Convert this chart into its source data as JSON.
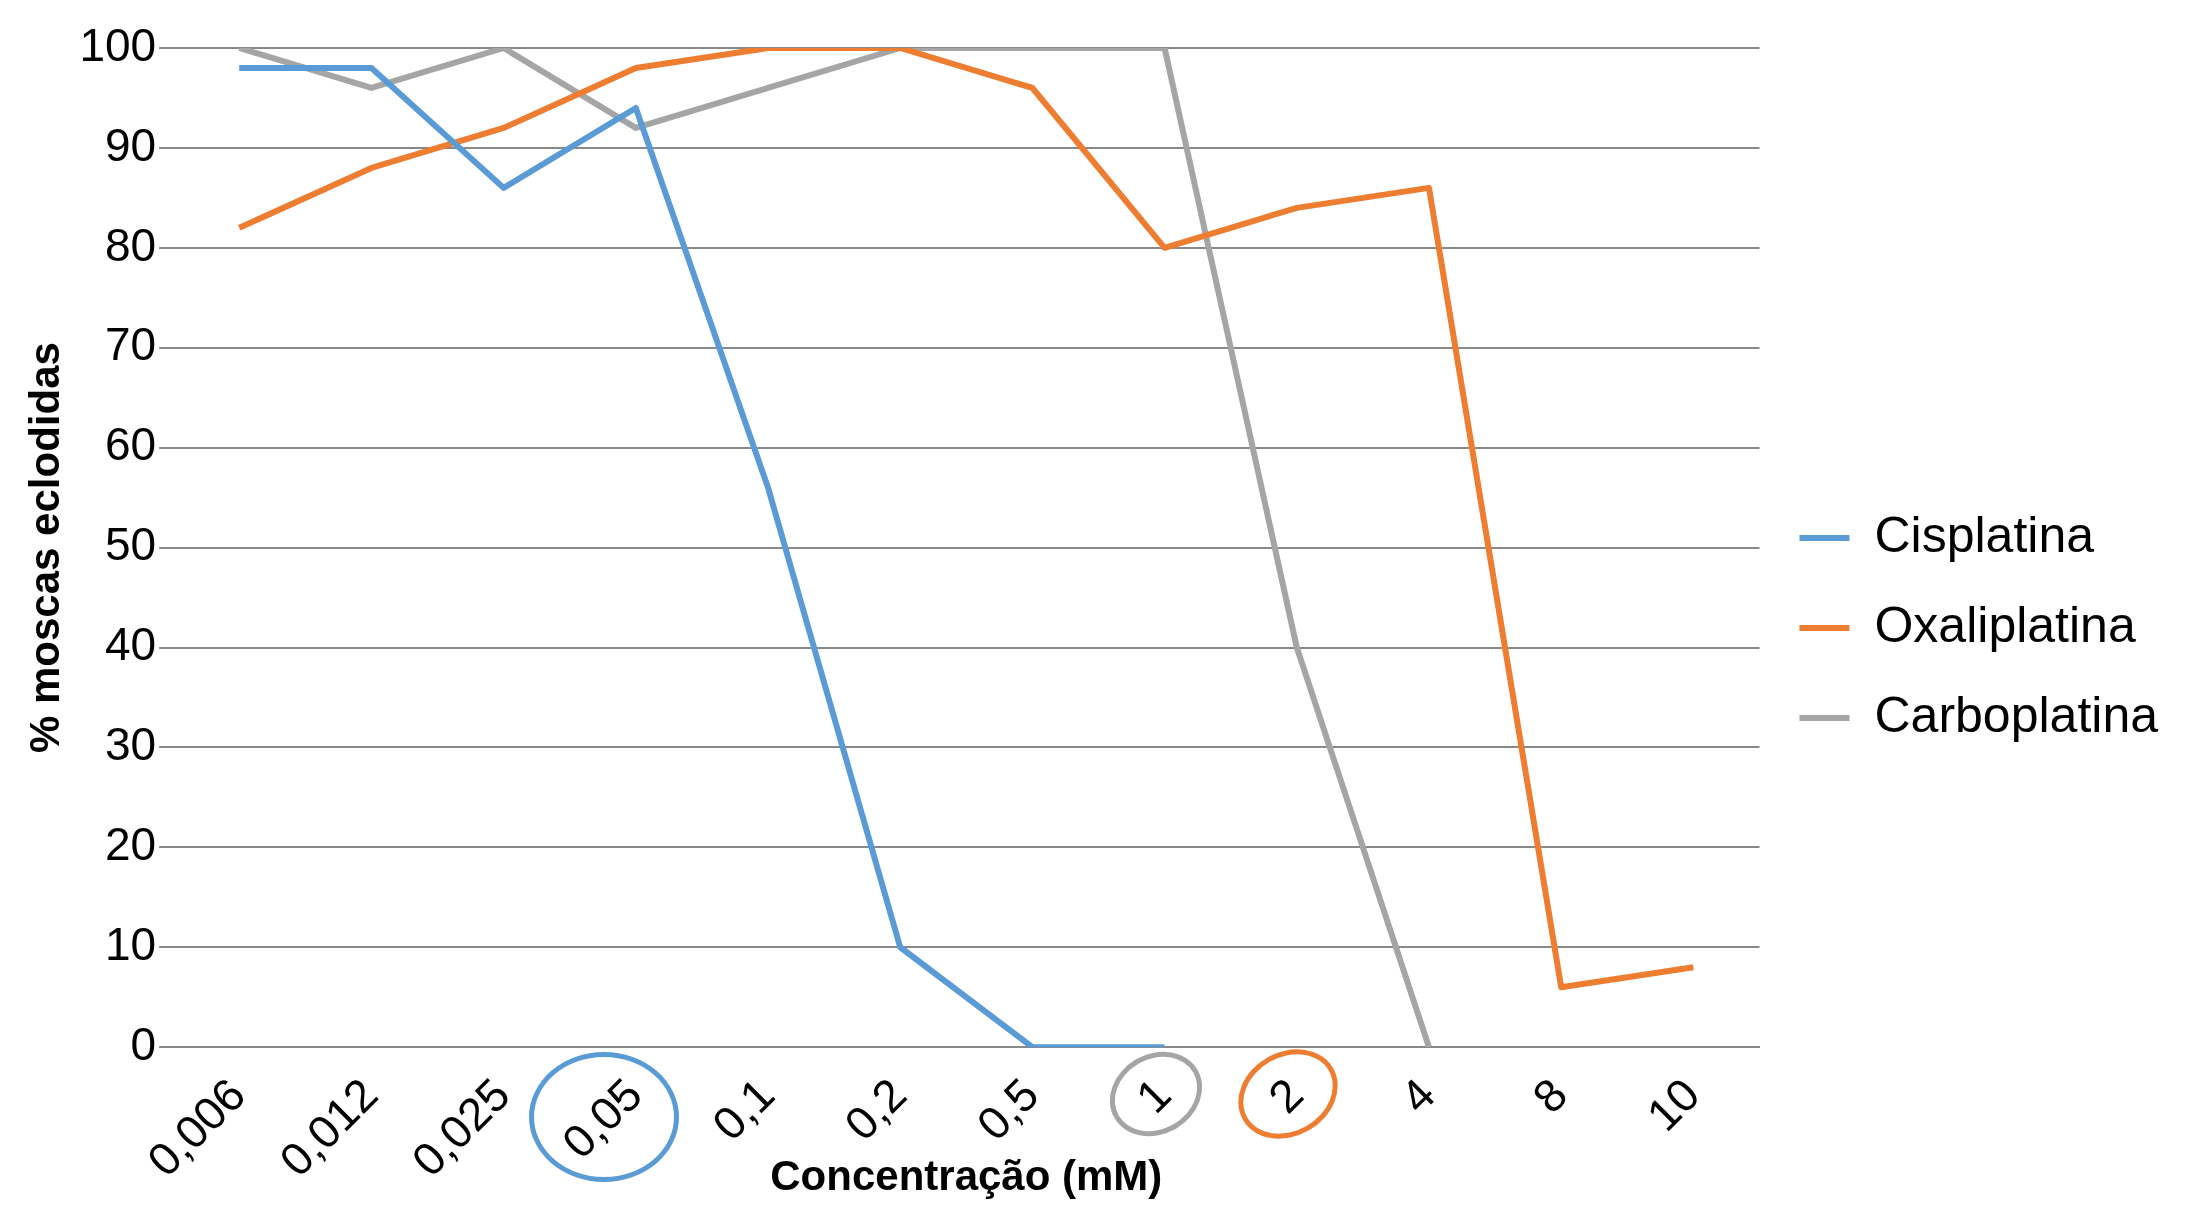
{
  "chart_data": {
    "type": "line",
    "xlabel": "Concentração (mM)",
    "ylabel": "% moscas eclodidas",
    "categories": [
      "0,006",
      "0,012",
      "0,025",
      "0,05",
      "0,1",
      "0,2",
      "0,5",
      "1",
      "2",
      "4",
      "8",
      "10"
    ],
    "series": [
      {
        "name": "Cisplatina",
        "color": "#5b9bd5",
        "values": [
          98,
          98,
          86,
          94,
          56,
          10,
          0,
          0,
          null,
          null,
          null,
          null
        ]
      },
      {
        "name": "Oxaliplatina",
        "color": "#ed7d31",
        "values": [
          82,
          88,
          92,
          98,
          100,
          100,
          96,
          80,
          84,
          86,
          6,
          8
        ]
      },
      {
        "name": "Carboplatina",
        "color": "#a5a5a5",
        "values": [
          100,
          96,
          100,
          92,
          96,
          100,
          100,
          100,
          40,
          0,
          null,
          null
        ]
      }
    ],
    "ylim": [
      0,
      100
    ],
    "yticks": [
      0,
      10,
      20,
      30,
      40,
      50,
      60,
      70,
      80,
      90,
      100
    ],
    "grid": "y",
    "legend": "right",
    "marker": "none",
    "line_style": "solid"
  }
}
